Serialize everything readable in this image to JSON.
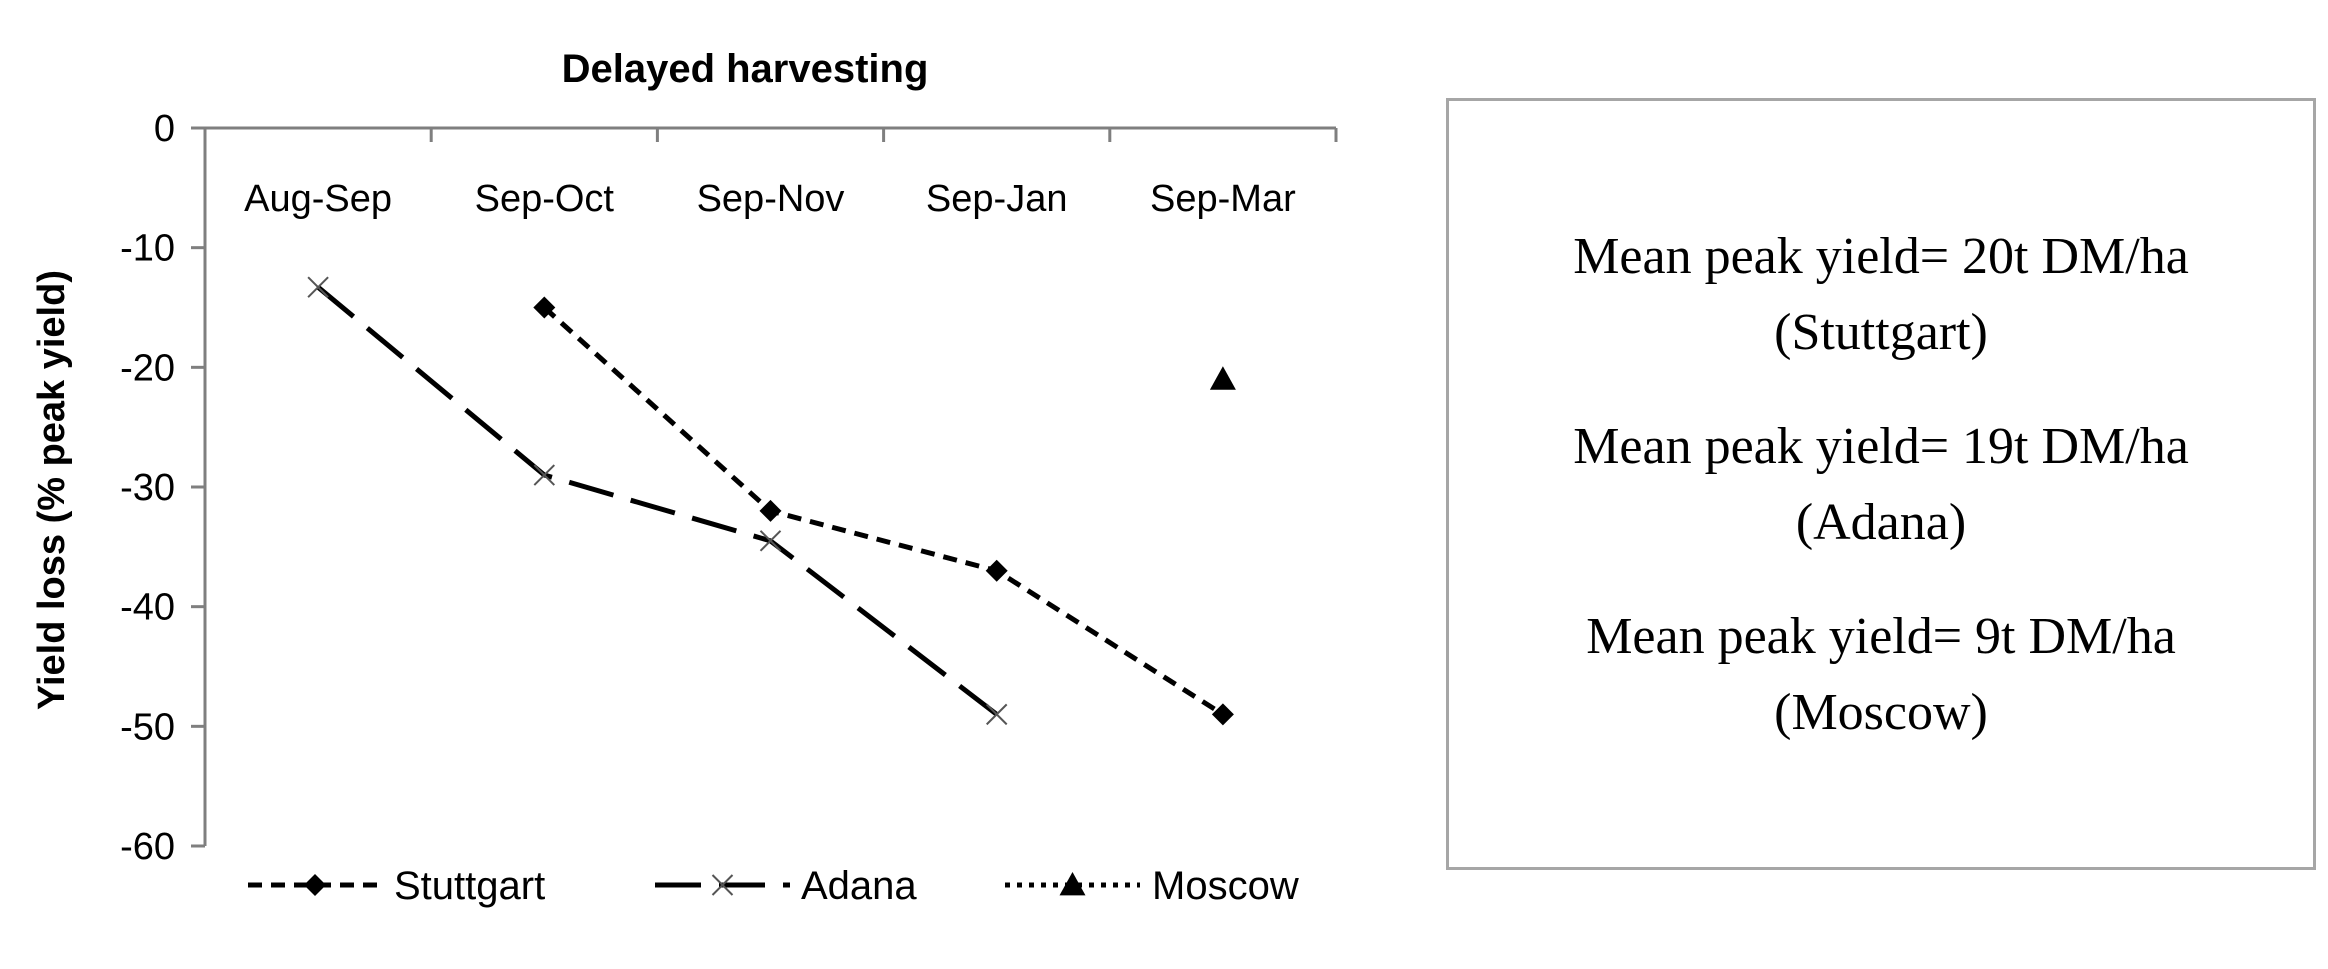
{
  "chart_data": {
    "type": "line",
    "title": "Delayed harvesting",
    "xlabel": "",
    "ylabel": "Yield loss (% peak yield)",
    "categories": [
      "Aug-Sep",
      "Sep-Oct",
      "Sep-Nov",
      "Sep-Jan",
      "Sep-Mar"
    ],
    "ylim": [
      -60,
      0
    ],
    "yticks": [
      0,
      -10,
      -20,
      -30,
      -40,
      -50,
      -60
    ],
    "x_axis_position": "top",
    "grid": false,
    "legend_position": "bottom",
    "series": [
      {
        "name": "Stuttgart",
        "values": [
          null,
          -15,
          -32,
          -37,
          -49
        ],
        "marker": "diamond",
        "line": "short-dash",
        "color": "#000000"
      },
      {
        "name": "Adana",
        "values": [
          -13.3,
          -29,
          -34.5,
          -49,
          null
        ],
        "marker": "x",
        "line": "long-dash",
        "color": "#000000"
      },
      {
        "name": "Moscow",
        "values": [
          null,
          null,
          null,
          null,
          -21
        ],
        "marker": "triangle",
        "line": "dotted",
        "color": "#000000"
      }
    ]
  },
  "notes": [
    {
      "line1": "Mean peak yield= 20t DM/ha",
      "line2": "(Stuttgart)"
    },
    {
      "line1": "Mean peak yield= 19t DM/ha",
      "line2": "(Adana)"
    },
    {
      "line1": "Mean peak yield= 9t DM/ha",
      "line2": "(Moscow)"
    }
  ]
}
